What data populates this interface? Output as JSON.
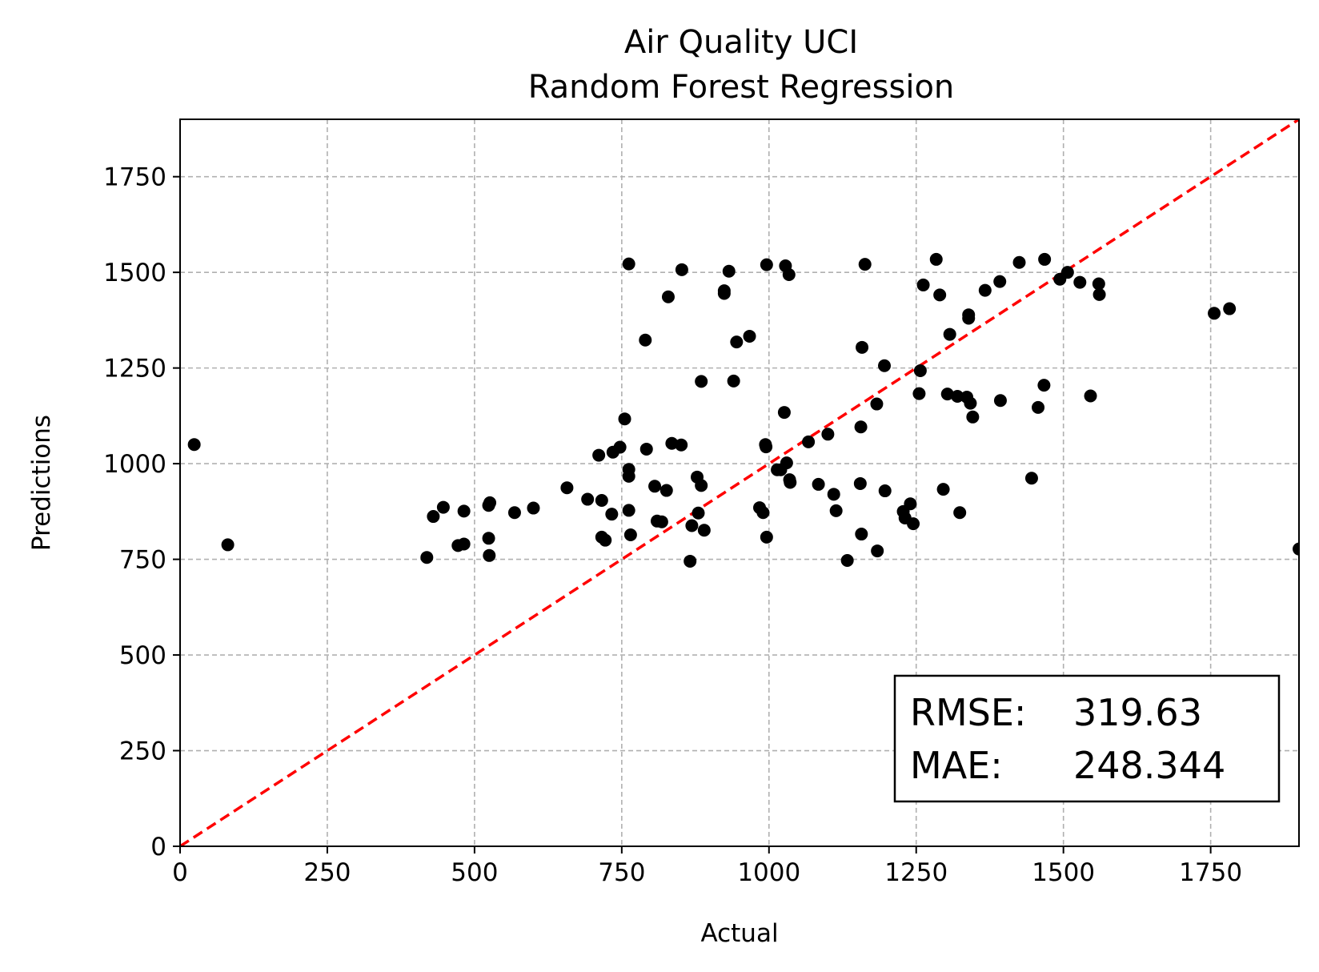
{
  "chart_data": {
    "type": "scatter",
    "title": "Air Quality UCI",
    "subtitle": "Random Forest Regression",
    "xlabel": "Actual",
    "ylabel": "Predictions",
    "xlim": [
      0,
      1900
    ],
    "ylim": [
      0,
      1900
    ],
    "xticks": [
      0,
      250,
      500,
      750,
      1000,
      1250,
      1500,
      1750
    ],
    "yticks": [
      0,
      250,
      500,
      750,
      1000,
      1250,
      1500,
      1750
    ],
    "xtick_labels": [
      "0",
      "250",
      "500",
      "750",
      "1000",
      "1250",
      "1500",
      "1750"
    ],
    "ytick_labels": [
      "0",
      "250",
      "500",
      "750",
      "1000",
      "1250",
      "1500",
      "1750"
    ],
    "grid": true,
    "point_color": "#000000",
    "reference_line": {
      "style": "dashed",
      "color": "#ff0000",
      "from": [
        0,
        0
      ],
      "to": [
        1900,
        1900
      ]
    },
    "metrics": {
      "rmse_label": "RMSE:",
      "rmse_value": "319.63",
      "mae_label": "MAE:",
      "mae_value": "248.344"
    },
    "points": [
      [
        24,
        1050
      ],
      [
        81,
        788
      ],
      [
        419,
        755
      ],
      [
        430,
        862
      ],
      [
        447,
        886
      ],
      [
        472,
        786
      ],
      [
        482,
        790
      ],
      [
        482,
        876
      ],
      [
        524,
        891
      ],
      [
        526,
        898
      ],
      [
        524,
        805
      ],
      [
        525,
        760
      ],
      [
        568,
        872
      ],
      [
        600,
        884
      ],
      [
        657,
        937
      ],
      [
        692,
        907
      ],
      [
        711,
        1022
      ],
      [
        716,
        904
      ],
      [
        716,
        808
      ],
      [
        722,
        800
      ],
      [
        733,
        868
      ],
      [
        735,
        1030
      ],
      [
        747,
        1043
      ],
      [
        755,
        1117
      ],
      [
        762,
        985
      ],
      [
        762,
        967
      ],
      [
        762,
        878
      ],
      [
        762,
        1522
      ],
      [
        765,
        814
      ],
      [
        790,
        1323
      ],
      [
        792,
        1038
      ],
      [
        806,
        941
      ],
      [
        810,
        850
      ],
      [
        818,
        848
      ],
      [
        826,
        930
      ],
      [
        829,
        1436
      ],
      [
        835,
        1053
      ],
      [
        851,
        1049
      ],
      [
        852,
        1507
      ],
      [
        866,
        745
      ],
      [
        869,
        838
      ],
      [
        878,
        965
      ],
      [
        880,
        871
      ],
      [
        885,
        943
      ],
      [
        885,
        1215
      ],
      [
        890,
        826
      ],
      [
        924,
        1452
      ],
      [
        924,
        1445
      ],
      [
        932,
        1503
      ],
      [
        940,
        1216
      ],
      [
        945,
        1318
      ],
      [
        967,
        1333
      ],
      [
        984,
        885
      ],
      [
        990,
        872
      ],
      [
        994,
        1050
      ],
      [
        995,
        1044
      ],
      [
        996,
        1520
      ],
      [
        996,
        808
      ],
      [
        1014,
        984
      ],
      [
        1020,
        984
      ],
      [
        1026,
        1134
      ],
      [
        1028,
        1517
      ],
      [
        1030,
        1002
      ],
      [
        1034,
        1494
      ],
      [
        1035,
        958
      ],
      [
        1036,
        951
      ],
      [
        1067,
        1057
      ],
      [
        1084,
        946
      ],
      [
        1100,
        1077
      ],
      [
        1110,
        920
      ],
      [
        1114,
        877
      ],
      [
        1133,
        747
      ],
      [
        1155,
        948
      ],
      [
        1156,
        1096
      ],
      [
        1157,
        816
      ],
      [
        1158,
        1304
      ],
      [
        1163,
        1521
      ],
      [
        1183,
        1156
      ],
      [
        1184,
        772
      ],
      [
        1196,
        1256
      ],
      [
        1197,
        929
      ],
      [
        1228,
        875
      ],
      [
        1231,
        858
      ],
      [
        1240,
        895
      ],
      [
        1245,
        843
      ],
      [
        1255,
        1183
      ],
      [
        1257,
        1243
      ],
      [
        1262,
        1467
      ],
      [
        1284,
        1534
      ],
      [
        1290,
        1441
      ],
      [
        1296,
        933
      ],
      [
        1303,
        1182
      ],
      [
        1307,
        1338
      ],
      [
        1320,
        1176
      ],
      [
        1324,
        872
      ],
      [
        1336,
        1174
      ],
      [
        1339,
        1389
      ],
      [
        1339,
        1380
      ],
      [
        1342,
        1158
      ],
      [
        1346,
        1122
      ],
      [
        1367,
        1453
      ],
      [
        1392,
        1476
      ],
      [
        1393,
        1165
      ],
      [
        1425,
        1526
      ],
      [
        1446,
        962
      ],
      [
        1457,
        1147
      ],
      [
        1467,
        1205
      ],
      [
        1468,
        1534
      ],
      [
        1494,
        1482
      ],
      [
        1507,
        1500
      ],
      [
        1528,
        1474
      ],
      [
        1546,
        1177
      ],
      [
        1560,
        1470
      ],
      [
        1561,
        1442
      ],
      [
        1756,
        1393
      ],
      [
        1782,
        1405
      ],
      [
        1900,
        777
      ]
    ]
  }
}
